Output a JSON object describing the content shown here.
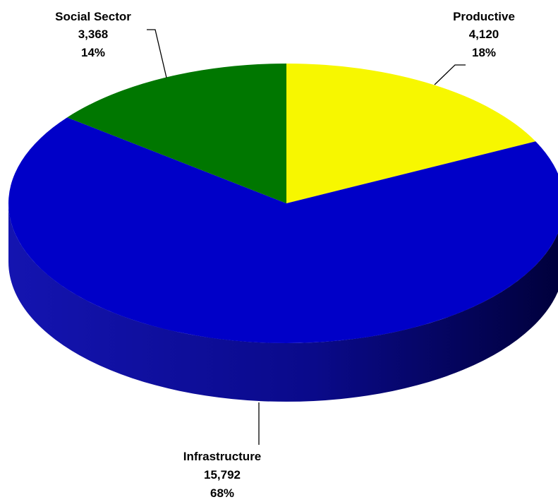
{
  "chart_data": {
    "type": "pie",
    "style": "3d",
    "slices": [
      {
        "name": "Productive",
        "value": 4120,
        "value_label": "4,120",
        "percent_label": "18%",
        "color": "#f7f700"
      },
      {
        "name": "Infrastructure",
        "value": 15792,
        "value_label": "15,792",
        "percent_label": "68%",
        "color": "#0000c8"
      },
      {
        "name": "Social Sector",
        "value": 3368,
        "value_label": "3,368",
        "percent_label": "14%",
        "color": "#007700"
      }
    ]
  }
}
